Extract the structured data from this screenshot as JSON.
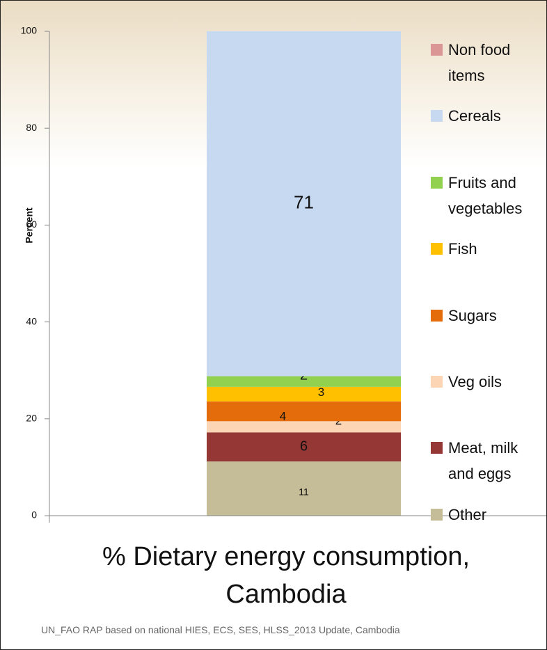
{
  "chart_data": {
    "type": "stacked_bar",
    "title": "% Dietary energy consumption, Cambodia",
    "y_label": "Percent",
    "source": "UN_FAO RAP based on national HIES, ECS, SES, HLSS_2013 Update, Cambodia",
    "ylim": [
      0,
      100
    ],
    "yticks": [
      0,
      20,
      40,
      60,
      80,
      100
    ],
    "series": [
      {
        "name": "Other",
        "color": "#c4bd97",
        "values": [
          11.2
        ],
        "value_labels": [
          "11"
        ]
      },
      {
        "name": "Meat, milk and eggs",
        "color": "#953735",
        "values": [
          6.0
        ],
        "value_labels": [
          "6"
        ]
      },
      {
        "name": "Veg oils",
        "color": "#fcd5b5",
        "values": [
          2.3
        ],
        "value_labels": [
          "2"
        ]
      },
      {
        "name": "Sugars",
        "color": "#e46c0a",
        "values": [
          4.1
        ],
        "value_labels": [
          "4"
        ]
      },
      {
        "name": "Fish",
        "color": "#ffc000",
        "values": [
          3.0
        ],
        "value_labels": [
          "3"
        ]
      },
      {
        "name": "Fruits and vegetables",
        "color": "#92d050",
        "values": [
          2.2
        ],
        "value_labels": [
          "2"
        ]
      },
      {
        "name": "Cereals",
        "color": "#c6d9f1",
        "values": [
          71.2
        ],
        "value_labels": [
          "71"
        ]
      },
      {
        "name": "Non food items",
        "color": "#d99694",
        "values": [
          0
        ]
      }
    ]
  }
}
